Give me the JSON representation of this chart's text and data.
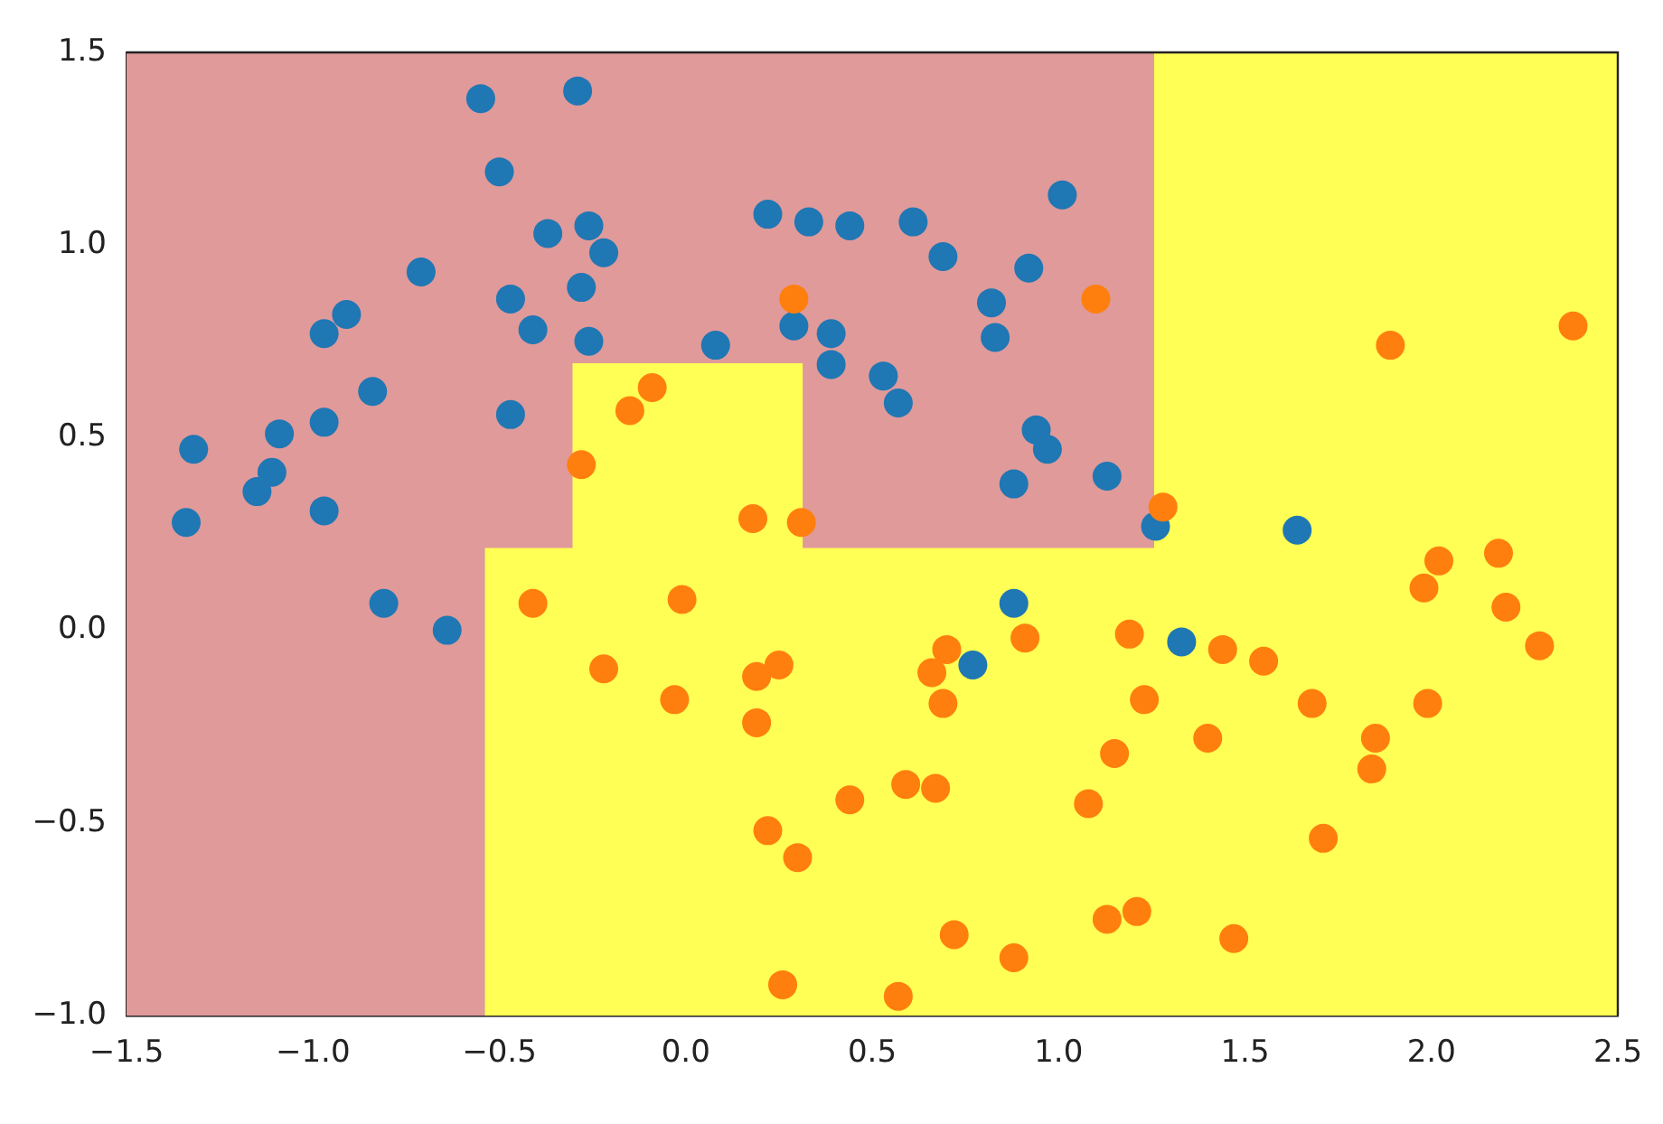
{
  "chart_data": {
    "type": "scatter",
    "xlim": [
      -1.5,
      2.5
    ],
    "ylim": [
      -1.0,
      1.5
    ],
    "xticks": [
      {
        "value": -1.5,
        "label": "−1.5"
      },
      {
        "value": -1.0,
        "label": "−1.0"
      },
      {
        "value": -0.5,
        "label": "−0.5"
      },
      {
        "value": 0,
        "label": "0.0"
      },
      {
        "value": 0.5,
        "label": "0.5"
      },
      {
        "value": 1.0,
        "label": "1.0"
      },
      {
        "value": 1.5,
        "label": "1.5"
      },
      {
        "value": 2.0,
        "label": "2.0"
      },
      {
        "value": 2.5,
        "label": "2.5"
      }
    ],
    "yticks": [
      {
        "value": -1.0,
        "label": "−1.0"
      },
      {
        "value": -0.5,
        "label": "−0.5"
      },
      {
        "value": 0,
        "label": "0.0"
      },
      {
        "value": 0.5,
        "label": "0.5"
      },
      {
        "value": 1.0,
        "label": "1.0"
      },
      {
        "value": 1.5,
        "label": "1.5"
      }
    ],
    "grid": false,
    "legend": false,
    "bands": [
      {
        "axis": "x",
        "from": -1.5,
        "to": 1.26,
        "color": "#e09a9a"
      }
    ],
    "series": [
      {
        "type": "area",
        "color": "#ffff55",
        "x": [
          -0.535,
          -0.535,
          -0.3,
          -0.3,
          0.31,
          0.31,
          1.26,
          1.26,
          2.5,
          2.5
        ],
        "values": [
          -1.0,
          0.21,
          0.21,
          0.69,
          0.69,
          0.21,
          0.21,
          1.5,
          1.5,
          -1.0
        ]
      },
      {
        "marker": "circle",
        "color": "#1f77b4",
        "x": [
          -1.34,
          -1.32,
          -1.15,
          -1.11,
          -1.09,
          -0.97,
          -0.97,
          -0.97,
          -0.91,
          -0.84,
          -0.71,
          -0.81,
          -0.64,
          -0.55,
          -0.29,
          -0.5,
          -0.47,
          -0.41,
          -0.47,
          -0.37,
          -0.26,
          -0.22,
          -0.28,
          -0.26,
          0.08,
          0.22,
          0.33,
          0.44,
          0.29,
          0.39,
          0.39,
          1.01,
          0.61,
          0.69,
          0.92,
          0.82,
          0.83,
          0.53,
          0.57,
          0.94,
          0.97,
          0.88,
          1.13,
          1.26,
          1.64,
          0.88,
          0.77,
          1.33
        ],
        "values": [
          0.28,
          0.47,
          0.36,
          0.41,
          0.51,
          0.31,
          0.54,
          0.77,
          0.82,
          0.62,
          0.93,
          0.07,
          0.0,
          1.38,
          1.4,
          1.19,
          0.86,
          0.78,
          0.56,
          1.03,
          1.05,
          0.98,
          0.89,
          0.75,
          0.74,
          1.08,
          1.06,
          1.05,
          0.79,
          0.77,
          0.69,
          1.13,
          1.06,
          0.97,
          0.94,
          0.85,
          0.76,
          0.66,
          0.59,
          0.52,
          0.47,
          0.38,
          0.4,
          0.27,
          0.26,
          0.07,
          -0.09,
          -0.03
        ]
      },
      {
        "marker": "circle",
        "color": "#ff7f0e",
        "x": [
          1.1,
          0.29,
          -0.09,
          -0.15,
          -0.28,
          0.18,
          0.31,
          1.28,
          -0.41,
          -0.01,
          -0.22,
          -0.03,
          0.19,
          0.25,
          0.19,
          0.44,
          0.22,
          0.3,
          0.26,
          2.02,
          2.18,
          1.98,
          2.2,
          2.29,
          0.7,
          0.66,
          0.69,
          0.91,
          1.19,
          1.44,
          1.55,
          1.23,
          1.68,
          1.99,
          1.4,
          1.85,
          1.84,
          1.15,
          0.59,
          0.67,
          1.08,
          1.71,
          0.72,
          0.88,
          1.13,
          1.21,
          1.47,
          0.57,
          1.89,
          2.38
        ],
        "values": [
          0.86,
          0.86,
          0.63,
          0.57,
          0.43,
          0.29,
          0.28,
          0.32,
          0.07,
          0.08,
          -0.1,
          -0.18,
          -0.12,
          -0.09,
          -0.24,
          -0.44,
          -0.52,
          -0.59,
          -0.92,
          0.18,
          0.2,
          0.11,
          0.06,
          -0.04,
          -0.05,
          -0.11,
          -0.19,
          -0.02,
          -0.01,
          -0.05,
          -0.08,
          -0.18,
          -0.19,
          -0.19,
          -0.28,
          -0.28,
          -0.36,
          -0.32,
          -0.4,
          -0.41,
          -0.45,
          -0.54,
          -0.79,
          -0.85,
          -0.75,
          -0.73,
          -0.8,
          -0.95,
          0.74,
          0.79
        ]
      }
    ]
  }
}
